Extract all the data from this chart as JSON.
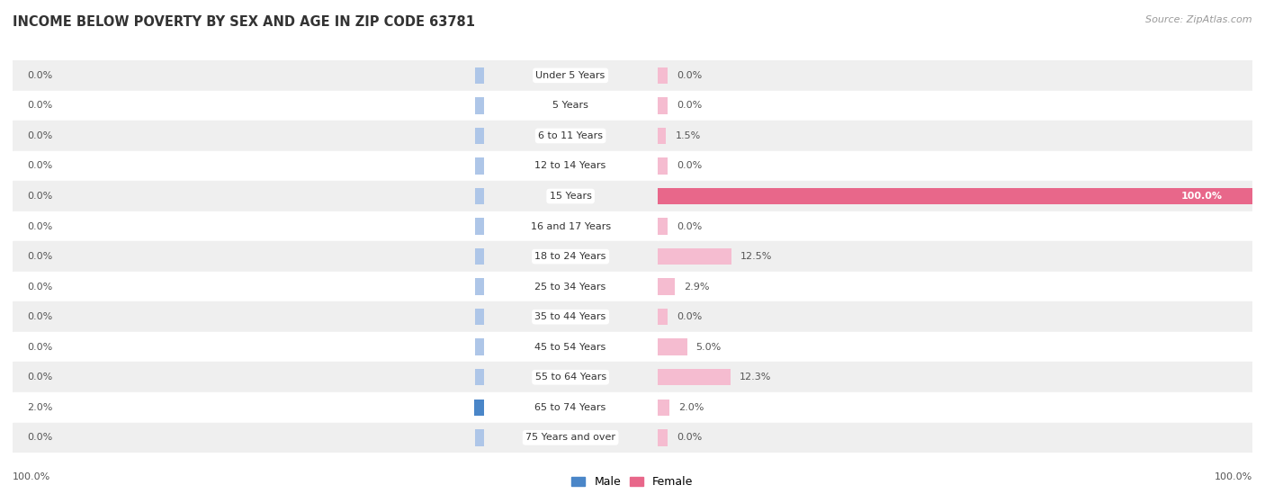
{
  "title": "INCOME BELOW POVERTY BY SEX AND AGE IN ZIP CODE 63781",
  "source": "Source: ZipAtlas.com",
  "categories": [
    "Under 5 Years",
    "5 Years",
    "6 to 11 Years",
    "12 to 14 Years",
    "15 Years",
    "16 and 17 Years",
    "18 to 24 Years",
    "25 to 34 Years",
    "35 to 44 Years",
    "45 to 54 Years",
    "55 to 64 Years",
    "65 to 74 Years",
    "75 Years and over"
  ],
  "male_values": [
    0.0,
    0.0,
    0.0,
    0.0,
    0.0,
    0.0,
    0.0,
    0.0,
    0.0,
    0.0,
    0.0,
    2.0,
    0.0
  ],
  "female_values": [
    0.0,
    0.0,
    1.5,
    0.0,
    100.0,
    0.0,
    12.5,
    2.9,
    0.0,
    5.0,
    12.3,
    2.0,
    0.0
  ],
  "male_color_light": "#aec6e8",
  "male_color_dark": "#4a86c8",
  "female_color_light": "#f5bcd0",
  "female_color_dark": "#e8678a",
  "bg_color_alt": "#efefef",
  "bg_color_main": "#ffffff",
  "label_color": "#555555",
  "title_color": "#333333",
  "source_color": "#999999",
  "max_value": 100.0,
  "stub_value": 1.8,
  "figwidth": 14.06,
  "figheight": 5.59
}
